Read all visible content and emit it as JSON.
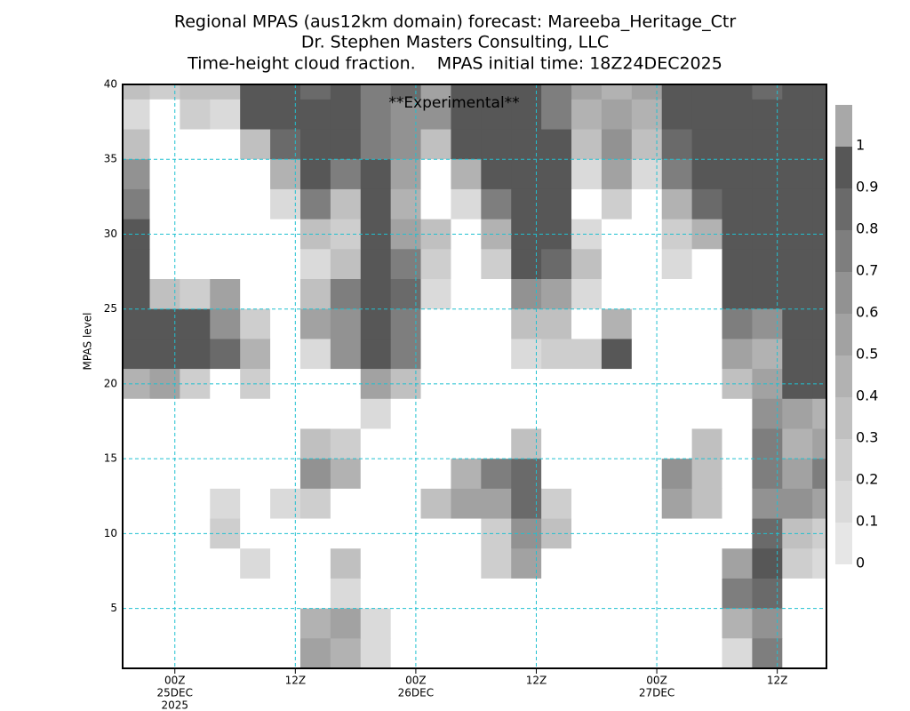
{
  "chart_data": {
    "type": "contour",
    "title": [
      "Regional MPAS (aus12km domain) forecast: Mareeba_Heritage_Ctr",
      "Dr. Stephen Masters Consulting, LLC",
      "Time-height cloud fraction.    MPAS initial time: 18Z24DEC2025"
    ],
    "annotation": "**Experimental**",
    "annotation_color": "#e0202a",
    "y_label": "MPAS level",
    "xlim": [
      0.8,
      70.9
    ],
    "ylim": [
      1,
      40
    ],
    "xticks": [
      {
        "value": 6,
        "label": "00Z"
      },
      {
        "value": 18,
        "label": "12Z"
      },
      {
        "value": 30,
        "label": "00Z"
      },
      {
        "value": 42,
        "label": "12Z"
      },
      {
        "value": 54,
        "label": "00Z"
      },
      {
        "value": 66,
        "label": "12Z"
      }
    ],
    "x_date_labels": [
      {
        "value": 6,
        "label": "25DEC"
      },
      {
        "value": 30,
        "label": "26DEC"
      },
      {
        "value": 54,
        "label": "27DEC"
      }
    ],
    "x_year_label": {
      "value": 6,
      "label": "2025"
    },
    "yticks": [
      5,
      10,
      15,
      20,
      25,
      30,
      35,
      40
    ],
    "grid": true,
    "grid_color": "#20c0d0",
    "x": [
      2,
      5,
      8,
      11,
      14,
      17,
      20,
      23,
      26,
      29,
      32,
      35,
      38,
      41,
      44,
      47,
      50,
      53,
      56,
      59,
      62,
      65,
      68,
      71
    ],
    "y": [
      40,
      38,
      36,
      34,
      32,
      30,
      28,
      26,
      24,
      22,
      20,
      18,
      16,
      14,
      12,
      10,
      8,
      6,
      4,
      2
    ],
    "z": [
      [
        0.3,
        0.2,
        0.3,
        0.3,
        0.9,
        0.9,
        0.8,
        0.9,
        0.7,
        0.8,
        0.5,
        0.9,
        0.9,
        0.9,
        0.7,
        0.5,
        0.4,
        0.5,
        0.9,
        0.9,
        0.9,
        0.8,
        0.9,
        0.9
      ],
      [
        0.1,
        0,
        0.2,
        0.1,
        0.9,
        0.9,
        0.9,
        0.9,
        0.7,
        0.6,
        0.6,
        0.9,
        0.95,
        0.95,
        0.7,
        0.4,
        0.5,
        0.4,
        0.9,
        0.9,
        0.95,
        0.9,
        0.9,
        0.95
      ],
      [
        0.3,
        0,
        0,
        0,
        0.3,
        0.8,
        0.9,
        0.9,
        0.7,
        0.6,
        0.3,
        0.9,
        0.9,
        0.95,
        0.95,
        0.3,
        0.6,
        0.3,
        0.8,
        0.95,
        0.95,
        0.95,
        0.9,
        0.95
      ],
      [
        0.6,
        0,
        0,
        0,
        0,
        0.4,
        0.9,
        0.7,
        0.9,
        0.5,
        0,
        0.4,
        0.9,
        0.95,
        0.95,
        0.1,
        0.5,
        0.1,
        0.7,
        0.95,
        0.95,
        0.95,
        0.9,
        0.95
      ],
      [
        0.7,
        0,
        0,
        0,
        0,
        0.1,
        0.7,
        0.3,
        0.9,
        0.4,
        0,
        0.1,
        0.7,
        0.95,
        0.95,
        0,
        0.2,
        0,
        0.4,
        0.8,
        0.95,
        0.95,
        0.9,
        0.95
      ],
      [
        0.9,
        0,
        0,
        0,
        0,
        0,
        0.3,
        0.2,
        0.9,
        0.5,
        0.3,
        0,
        0.4,
        0.9,
        0.9,
        0.1,
        0,
        0,
        0.2,
        0.4,
        0.9,
        0.95,
        0.95,
        0.95
      ],
      [
        0.95,
        0,
        0,
        0,
        0,
        0,
        0.1,
        0.3,
        0.9,
        0.7,
        0.2,
        0,
        0.2,
        0.9,
        0.8,
        0.3,
        0,
        0,
        0.1,
        0,
        0.9,
        0.9,
        0.95,
        0.95
      ],
      [
        0.95,
        0.3,
        0.2,
        0.5,
        0,
        0,
        0.3,
        0.7,
        0.95,
        0.8,
        0.1,
        0,
        0,
        0.6,
        0.5,
        0.1,
        0,
        0,
        0,
        0,
        0.9,
        0.95,
        0.95,
        0.95
      ],
      [
        0.95,
        0.9,
        0.9,
        0.6,
        0.2,
        0,
        0.5,
        0.6,
        0.95,
        0.7,
        0,
        0,
        0,
        0.3,
        0.3,
        0,
        0.4,
        0,
        0,
        0,
        0.7,
        0.6,
        0.95,
        0.95
      ],
      [
        0.95,
        0.9,
        0.9,
        0.8,
        0.4,
        0,
        0.1,
        0.6,
        0.9,
        0.7,
        0,
        0,
        0,
        0.1,
        0.2,
        0.2,
        0.9,
        0,
        0,
        0,
        0.5,
        0.4,
        0.95,
        0.95
      ],
      [
        0.4,
        0.5,
        0.2,
        0,
        0.2,
        0,
        0,
        0,
        0.5,
        0.3,
        0,
        0,
        0,
        0,
        0,
        0,
        0,
        0,
        0,
        0,
        0.3,
        0.5,
        0.9,
        0.9
      ],
      [
        0,
        0,
        0,
        0,
        0,
        0,
        0,
        0,
        0.1,
        0,
        0,
        0,
        0,
        0,
        0,
        0,
        0,
        0,
        0,
        0,
        0,
        0.6,
        0.5,
        0.4
      ],
      [
        0,
        0,
        0,
        0,
        0,
        0,
        0.3,
        0.2,
        0,
        0,
        0,
        0,
        0,
        0.3,
        0,
        0,
        0,
        0,
        0,
        0.3,
        0,
        0.7,
        0.4,
        0.5
      ],
      [
        0,
        0,
        0,
        0,
        0,
        0,
        0.6,
        0.4,
        0,
        0,
        0,
        0.4,
        0.7,
        0.8,
        0,
        0,
        0,
        0,
        0.6,
        0.3,
        0,
        0.7,
        0.5,
        0.7
      ],
      [
        0,
        0,
        0,
        0.1,
        0,
        0.1,
        0.2,
        0,
        0,
        0,
        0.3,
        0.5,
        0.5,
        0.8,
        0.2,
        0,
        0,
        0,
        0.5,
        0.3,
        0,
        0.6,
        0.6,
        0.5
      ],
      [
        0,
        0,
        0,
        0.2,
        0,
        0,
        0,
        0,
        0,
        0,
        0,
        0,
        0.2,
        0.6,
        0.3,
        0,
        0,
        0,
        0,
        0,
        0,
        0.8,
        0.3,
        0.2
      ],
      [
        0,
        0,
        0,
        0,
        0.1,
        0,
        0,
        0.3,
        0,
        0,
        0,
        0,
        0.2,
        0.5,
        0,
        0,
        0,
        0,
        0,
        0,
        0.5,
        0.9,
        0.2,
        0.1
      ],
      [
        0,
        0,
        0,
        0,
        0,
        0,
        0,
        0.1,
        0,
        0,
        0,
        0,
        0,
        0,
        0,
        0,
        0,
        0,
        0,
        0,
        0.7,
        0.8,
        0,
        0
      ],
      [
        0,
        0,
        0,
        0,
        0,
        0,
        0.4,
        0.5,
        0.1,
        0,
        0,
        0,
        0,
        0,
        0,
        0,
        0,
        0,
        0,
        0,
        0.4,
        0.6,
        0,
        0
      ],
      [
        0,
        0,
        0,
        0,
        0,
        0,
        0.5,
        0.4,
        0.1,
        0,
        0,
        0,
        0,
        0,
        0,
        0,
        0,
        0,
        0,
        0,
        0.1,
        0.7,
        0,
        0
      ]
    ],
    "colorbar": {
      "ticks": [
        0,
        0.1,
        0.2,
        0.3,
        0.4,
        0.5,
        0.6,
        0.7,
        0.8,
        0.9,
        1
      ],
      "colors": [
        "#e6e6e6",
        "#dadada",
        "#cecece",
        "#c0c0c0",
        "#b2b2b2",
        "#a2a2a2",
        "#929292",
        "#7e7e7e",
        "#6a6a6a",
        "#575757",
        "#a8a8a8"
      ]
    }
  }
}
